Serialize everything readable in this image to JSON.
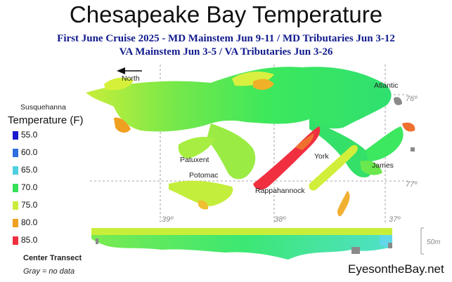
{
  "title": "Chesapeake Bay Temperature",
  "subtitle_line1": "First June Cruise 2025 - MD Mainstem Jun 9-11 / MD Tributaries Jun 3-12",
  "subtitle_line2": "VA Mainstem Jun 3-5 /  VA Tributaries Jun 3-26",
  "map_labels": {
    "north": "North",
    "susquehanna": "Susquehanna",
    "atlantic": "Atlantic",
    "patuxent": "Patuxent",
    "potomac": "Potomac",
    "york": "York",
    "james": "James",
    "rappahannock": "Rappahannock"
  },
  "coordinates": {
    "lat_76": "76º",
    "lat_77": "77º",
    "lon_39": "39º",
    "lon_38": "38º",
    "lon_37": "37º"
  },
  "legend": {
    "title": "Temperature (F)",
    "items": [
      {
        "label": "55.0",
        "color": "#1a1acc"
      },
      {
        "label": "60.0",
        "color": "#2f6fe0"
      },
      {
        "label": "65.0",
        "color": "#4fd0e0"
      },
      {
        "label": "70.0",
        "color": "#36e05a"
      },
      {
        "label": "75.0",
        "color": "#c8ee3a"
      },
      {
        "label": "80.0",
        "color": "#f0a020"
      },
      {
        "label": "85.0",
        "color": "#f03040"
      }
    ]
  },
  "transect": {
    "label": "Center Transect",
    "scale_label": "50m"
  },
  "no_data_note": "Gray = no data",
  "brand": "EyesontheBay.net",
  "colors": {
    "subtitle": "#101a8c",
    "no_data": "#8a8a8a",
    "warm": "#f03040",
    "mid": "#c8ee3a",
    "cool": "#36e05a"
  }
}
